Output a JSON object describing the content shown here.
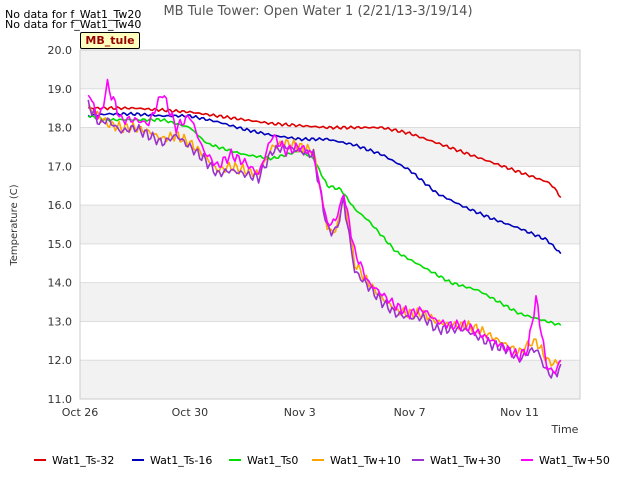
{
  "notes": [
    "No data for f_Wat1_Tw20",
    "No data for f_Wat1_Tw40"
  ],
  "site_tag": "MB_tule",
  "chart_data": {
    "type": "line",
    "title": "MB Tule Tower: Open Water 1 (2/21/13-3/19/14)",
    "xlabel": "Time",
    "ylabel": "Temperature (C)",
    "ylim": [
      11.0,
      20.0
    ],
    "xlim_days": [
      0,
      18.2
    ],
    "yticks": [
      11.0,
      12.0,
      13.0,
      14.0,
      15.0,
      16.0,
      17.0,
      18.0,
      19.0,
      20.0
    ],
    "ytick_labels": [
      "11.0",
      "12.0",
      "13.0",
      "14.0",
      "15.0",
      "16.0",
      "17.0",
      "18.0",
      "19.0",
      "20.0"
    ],
    "xticks": [
      0,
      4,
      8,
      12,
      16
    ],
    "xtick_labels": [
      "Oct 26",
      "Oct 30",
      "Nov 3",
      "Nov 7",
      "Nov 11"
    ],
    "grid": "horizontal bands",
    "legend_position": "bottom",
    "x_units": "days since Oct 26",
    "series": [
      {
        "name": "Wat1_Ts-32",
        "color": "#dd0000",
        "x": [
          0.3,
          1,
          2,
          3,
          4,
          5,
          6,
          7,
          8,
          9,
          10,
          11,
          12,
          13,
          14,
          15,
          16,
          17,
          17.2,
          17.5
        ],
        "y": [
          18.5,
          18.5,
          18.5,
          18.45,
          18.4,
          18.3,
          18.2,
          18.1,
          18.05,
          18.0,
          18.0,
          18.0,
          17.85,
          17.6,
          17.35,
          17.1,
          16.85,
          16.6,
          16.5,
          16.2
        ]
      },
      {
        "name": "Wat1_Ts-16",
        "color": "#0000bb",
        "x": [
          0.3,
          1,
          2,
          3,
          4,
          5,
          6,
          7,
          8,
          9,
          10,
          11,
          12,
          13,
          14,
          15,
          16,
          17,
          17.5
        ],
        "y": [
          18.3,
          18.35,
          18.35,
          18.3,
          18.3,
          18.15,
          17.95,
          17.8,
          17.7,
          17.7,
          17.55,
          17.3,
          16.9,
          16.3,
          15.95,
          15.65,
          15.4,
          15.1,
          14.75
        ]
      },
      {
        "name": "Wat1_Ts0",
        "color": "#00dd00",
        "x": [
          0.3,
          1,
          2,
          3,
          4,
          4.6,
          5,
          6,
          7,
          7.5,
          8,
          8.5,
          9,
          9.5,
          10,
          10.5,
          11,
          11.5,
          12,
          12.5,
          13,
          13.5,
          14,
          14.5,
          15,
          15.5,
          16,
          16.5,
          17,
          17.5
        ],
        "y": [
          18.3,
          18.2,
          18.2,
          18.2,
          18.0,
          17.6,
          17.5,
          17.3,
          17.2,
          17.3,
          17.4,
          17.2,
          16.5,
          16.4,
          15.9,
          15.6,
          15.2,
          14.8,
          14.6,
          14.4,
          14.2,
          14.0,
          13.9,
          13.8,
          13.6,
          13.4,
          13.2,
          13.1,
          13.0,
          12.9
        ]
      },
      {
        "name": "Wat1_Tw+10",
        "color": "#ffa500",
        "x": [
          0.3,
          0.7,
          1,
          1.5,
          2,
          2.5,
          3,
          3.5,
          4,
          4.5,
          5,
          5.5,
          6,
          6.5,
          7,
          7.5,
          8,
          8.5,
          9,
          9.3,
          9.6,
          10,
          10.5,
          11,
          11.5,
          12,
          12.5,
          13,
          13.5,
          14,
          14.5,
          15,
          15.5,
          16,
          16.3,
          16.6,
          17,
          17.3,
          17.5
        ],
        "y": [
          18.5,
          18.3,
          18.1,
          18.0,
          18.0,
          17.9,
          17.7,
          17.8,
          17.6,
          17.3,
          16.9,
          17.0,
          16.9,
          16.8,
          17.5,
          17.6,
          17.5,
          17.4,
          15.4,
          15.3,
          16.2,
          14.5,
          14.0,
          13.6,
          13.3,
          13.2,
          13.2,
          13.0,
          12.9,
          12.9,
          12.8,
          12.6,
          12.4,
          12.2,
          12.4,
          12.5,
          12.0,
          11.9,
          12.0
        ]
      },
      {
        "name": "Wat1_Tw+30",
        "color": "#9a32cd",
        "x": [
          0.3,
          0.7,
          1,
          1.5,
          2,
          2.5,
          3,
          3.5,
          4,
          4.5,
          5,
          5.5,
          6,
          6.5,
          7,
          7.5,
          8,
          8.5,
          9,
          9.3,
          9.6,
          10,
          10.5,
          11,
          11.5,
          12,
          12.5,
          13,
          13.5,
          14,
          14.5,
          15,
          15.5,
          16,
          16.3,
          16.6,
          17,
          17.3,
          17.5
        ],
        "y": [
          18.6,
          18.1,
          18.2,
          17.9,
          18.0,
          17.8,
          17.6,
          17.8,
          17.5,
          17.2,
          16.8,
          16.9,
          16.8,
          16.7,
          17.4,
          17.5,
          17.4,
          17.3,
          15.4,
          15.3,
          16.1,
          14.3,
          13.9,
          13.5,
          13.2,
          13.1,
          13.1,
          12.8,
          12.8,
          12.8,
          12.6,
          12.4,
          12.3,
          12.0,
          12.2,
          12.3,
          11.7,
          11.6,
          11.9
        ]
      },
      {
        "name": "Wat1_Tw+50",
        "color": "#ff00ff",
        "x": [
          0.3,
          0.7,
          1,
          1.5,
          2,
          2.5,
          3,
          3.5,
          4,
          4.5,
          5,
          5.5,
          6,
          6.5,
          7,
          7.5,
          8,
          8.5,
          9,
          9.3,
          9.6,
          10,
          10.5,
          11,
          11.5,
          12,
          12.5,
          13,
          13.5,
          14,
          14.5,
          15,
          15.5,
          16,
          16.3,
          16.6,
          17,
          17.3,
          17.5
        ],
        "y": [
          18.9,
          18.2,
          19.1,
          18.2,
          18.2,
          18.1,
          18.9,
          18.0,
          18.3,
          17.4,
          17.0,
          17.3,
          17.1,
          16.8,
          17.8,
          17.4,
          17.5,
          17.3,
          15.5,
          15.6,
          16.3,
          14.8,
          14.0,
          13.7,
          13.4,
          13.2,
          13.3,
          13.0,
          12.9,
          12.9,
          12.7,
          12.5,
          12.3,
          12.1,
          12.3,
          13.6,
          11.8,
          11.7,
          12.0
        ]
      }
    ]
  }
}
